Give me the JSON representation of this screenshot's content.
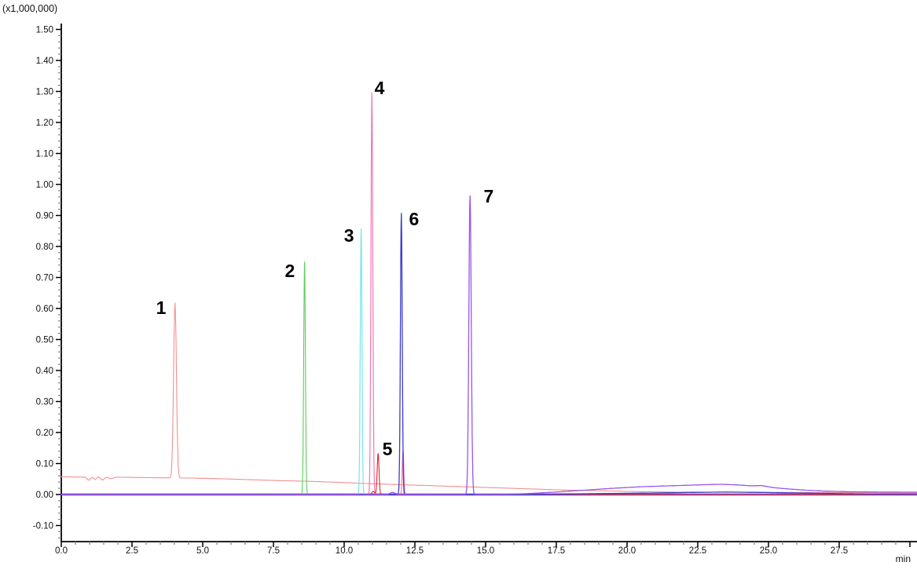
{
  "chart_data": {
    "type": "line",
    "title": "",
    "description": "HPLC chromatogram overlay of seven single-analyte traces with numbered peaks",
    "y_axis": {
      "unit": "(x1,000,000)",
      "label_min": -0.1,
      "label_max": 1.5,
      "major_step": 0.1,
      "minor_step": 0.02,
      "axis_draw_min": -0.152,
      "axis_draw_max": 1.52,
      "tick_labels": [
        "-0.10",
        "0.00",
        "0.10",
        "0.20",
        "0.30",
        "0.40",
        "0.50",
        "0.60",
        "0.70",
        "0.80",
        "0.90",
        "1.00",
        "1.10",
        "1.20",
        "1.30",
        "1.40",
        "1.50"
      ]
    },
    "x_axis": {
      "unit": "min",
      "min": 0.0,
      "display_max": 30.25,
      "major_step": 2.5,
      "minor_step": 0.5,
      "tick_labels": [
        "0.0",
        "2.5",
        "5.0",
        "7.5",
        "10.0",
        "12.5",
        "15.0",
        "17.5",
        "20.0",
        "22.5",
        "25.0",
        "27.5"
      ]
    },
    "peaks": [
      {
        "label": "1",
        "retention_min": 4.0,
        "apex_height": 0.62,
        "trace": "salmon",
        "label_t": 3.53,
        "label_v": 0.603
      },
      {
        "label": "2",
        "retention_min": 8.6,
        "apex_height": 0.75,
        "trace": "green",
        "label_t": 8.08,
        "label_v": 0.722
      },
      {
        "label": "3",
        "retention_min": 10.6,
        "apex_height": 0.86,
        "trace": "cyan",
        "label_t": 10.17,
        "label_v": 0.835
      },
      {
        "label": "4",
        "retention_min": 11.0,
        "apex_height": 1.3,
        "trace": "pink",
        "label_t": 11.25,
        "label_v": 1.311
      },
      {
        "label": "5",
        "retention_min": 11.2,
        "apex_height": 0.13,
        "trace": "red",
        "label_t": 11.53,
        "label_v": 0.147
      },
      {
        "label": "6",
        "retention_min": 12.0,
        "apex_height": 0.91,
        "trace": "blue",
        "label_t": 12.47,
        "label_v": 0.889
      },
      {
        "label": "7",
        "retention_min": 14.4,
        "apex_height": 0.97,
        "trace": "violet",
        "label_t": 15.11,
        "label_v": 0.962
      }
    ],
    "series": [
      {
        "name": "trace-salmon",
        "color": "#f29090",
        "width": 1.1,
        "baseline": [
          [
            0,
            0.057
          ],
          [
            0.85,
            0.056
          ],
          [
            0.98,
            0.044
          ],
          [
            1.08,
            0.057
          ],
          [
            1.2,
            0.048
          ],
          [
            1.32,
            0.058
          ],
          [
            1.45,
            0.046
          ],
          [
            1.6,
            0.056
          ],
          [
            1.75,
            0.051
          ],
          [
            1.95,
            0.056
          ],
          [
            2.6,
            0.055
          ],
          [
            3.4,
            0.054
          ],
          [
            4.6,
            0.053
          ],
          [
            5.6,
            0.051
          ],
          [
            6.6,
            0.048
          ],
          [
            7.6,
            0.045
          ],
          [
            8.6,
            0.043
          ],
          [
            9.6,
            0.04
          ],
          [
            10.6,
            0.036
          ],
          [
            11.6,
            0.033
          ],
          [
            12.6,
            0.03
          ],
          [
            13.6,
            0.027
          ],
          [
            14.6,
            0.024
          ],
          [
            15.6,
            0.021
          ],
          [
            16.6,
            0.018
          ],
          [
            17.6,
            0.015
          ],
          [
            18.6,
            0.013
          ],
          [
            19.6,
            0.011
          ],
          [
            20.6,
            0.009
          ],
          [
            21.6,
            0.008
          ],
          [
            23,
            0.0075
          ],
          [
            25,
            0.007
          ],
          [
            27,
            0.0065
          ],
          [
            30.25,
            0.006
          ]
        ],
        "peaks": [
          {
            "t": 4.02,
            "h": 0.565,
            "w": 0.05
          }
        ]
      },
      {
        "name": "baseline-cluster",
        "color": "#4a0ac4",
        "width": 2.6,
        "baseline": [
          [
            0,
            0
          ],
          [
            30.25,
            0
          ]
        ],
        "peaks": []
      },
      {
        "name": "trace-green",
        "color": "#5ccc5c",
        "width": 1.1,
        "baseline": [
          [
            0,
            0
          ],
          [
            30.25,
            0
          ]
        ],
        "peaks": [
          {
            "t": 8.6,
            "h": 0.75,
            "w": 0.03
          }
        ]
      },
      {
        "name": "trace-cyan",
        "color": "#76e4ec",
        "width": 1.2,
        "baseline": [
          [
            0,
            0
          ],
          [
            30.25,
            0
          ]
        ],
        "peaks": [
          {
            "t": 10.6,
            "h": 0.857,
            "w": 0.03
          }
        ]
      },
      {
        "name": "trace-pink",
        "color": "#f278b4",
        "width": 1.2,
        "baseline": [
          [
            0,
            0
          ],
          [
            30.25,
            0
          ]
        ],
        "peaks": [
          {
            "t": 10.98,
            "h": 1.297,
            "w": 0.032
          },
          {
            "t": 12.08,
            "h": 0.142,
            "w": 0.027
          }
        ]
      },
      {
        "name": "trace-red",
        "color": "#d62c2c",
        "width": 1.1,
        "baseline": [
          [
            0,
            0
          ],
          [
            30.25,
            0
          ]
        ],
        "peaks": [
          {
            "t": 11.2,
            "h": 0.132,
            "w": 0.032
          },
          {
            "t": 11.03,
            "h": 0.01,
            "w": 0.05
          }
        ]
      },
      {
        "name": "trace-blue",
        "color": "#3c3ccc",
        "width": 1.3,
        "baseline": [
          [
            0,
            0
          ],
          [
            15,
            0
          ],
          [
            17,
            0.001
          ],
          [
            19,
            0.003
          ],
          [
            21,
            0.005
          ],
          [
            22.5,
            0.007
          ],
          [
            23.5,
            0.008
          ],
          [
            24.5,
            0.007
          ],
          [
            26,
            0.005
          ],
          [
            27.5,
            0.003
          ],
          [
            29,
            0.002
          ],
          [
            30.25,
            0.002
          ]
        ],
        "peaks": [
          {
            "t": 12.02,
            "h": 0.908,
            "w": 0.032
          }
        ]
      },
      {
        "name": "trace-violet",
        "color": "#9b55e8",
        "width": 1.3,
        "baseline": [
          [
            0,
            0
          ],
          [
            11.4,
            0
          ],
          [
            11.55,
            0.001
          ],
          [
            11.7,
            0.007
          ],
          [
            11.9,
            0.001
          ],
          [
            13,
            0.001
          ],
          [
            15.8,
            0.001
          ],
          [
            16.5,
            0.003
          ],
          [
            17.5,
            0.008
          ],
          [
            18.5,
            0.014
          ],
          [
            19.5,
            0.02
          ],
          [
            20.5,
            0.025
          ],
          [
            21.5,
            0.028
          ],
          [
            22.5,
            0.031
          ],
          [
            23.3,
            0.033
          ],
          [
            23.9,
            0.031
          ],
          [
            24.4,
            0.028
          ],
          [
            24.75,
            0.029
          ],
          [
            25.2,
            0.022
          ],
          [
            25.7,
            0.018
          ],
          [
            26.3,
            0.014
          ],
          [
            27,
            0.011
          ],
          [
            27.8,
            0.009
          ],
          [
            28.8,
            0.008
          ],
          [
            30.25,
            0.0075
          ]
        ],
        "peaks": [
          {
            "t": 14.45,
            "h": 0.962,
            "w": 0.042
          }
        ]
      }
    ],
    "colors": {
      "axis": "#000000",
      "minor_tick": "#808080",
      "tick_label": "#111111",
      "peak_label": "#000000"
    }
  }
}
